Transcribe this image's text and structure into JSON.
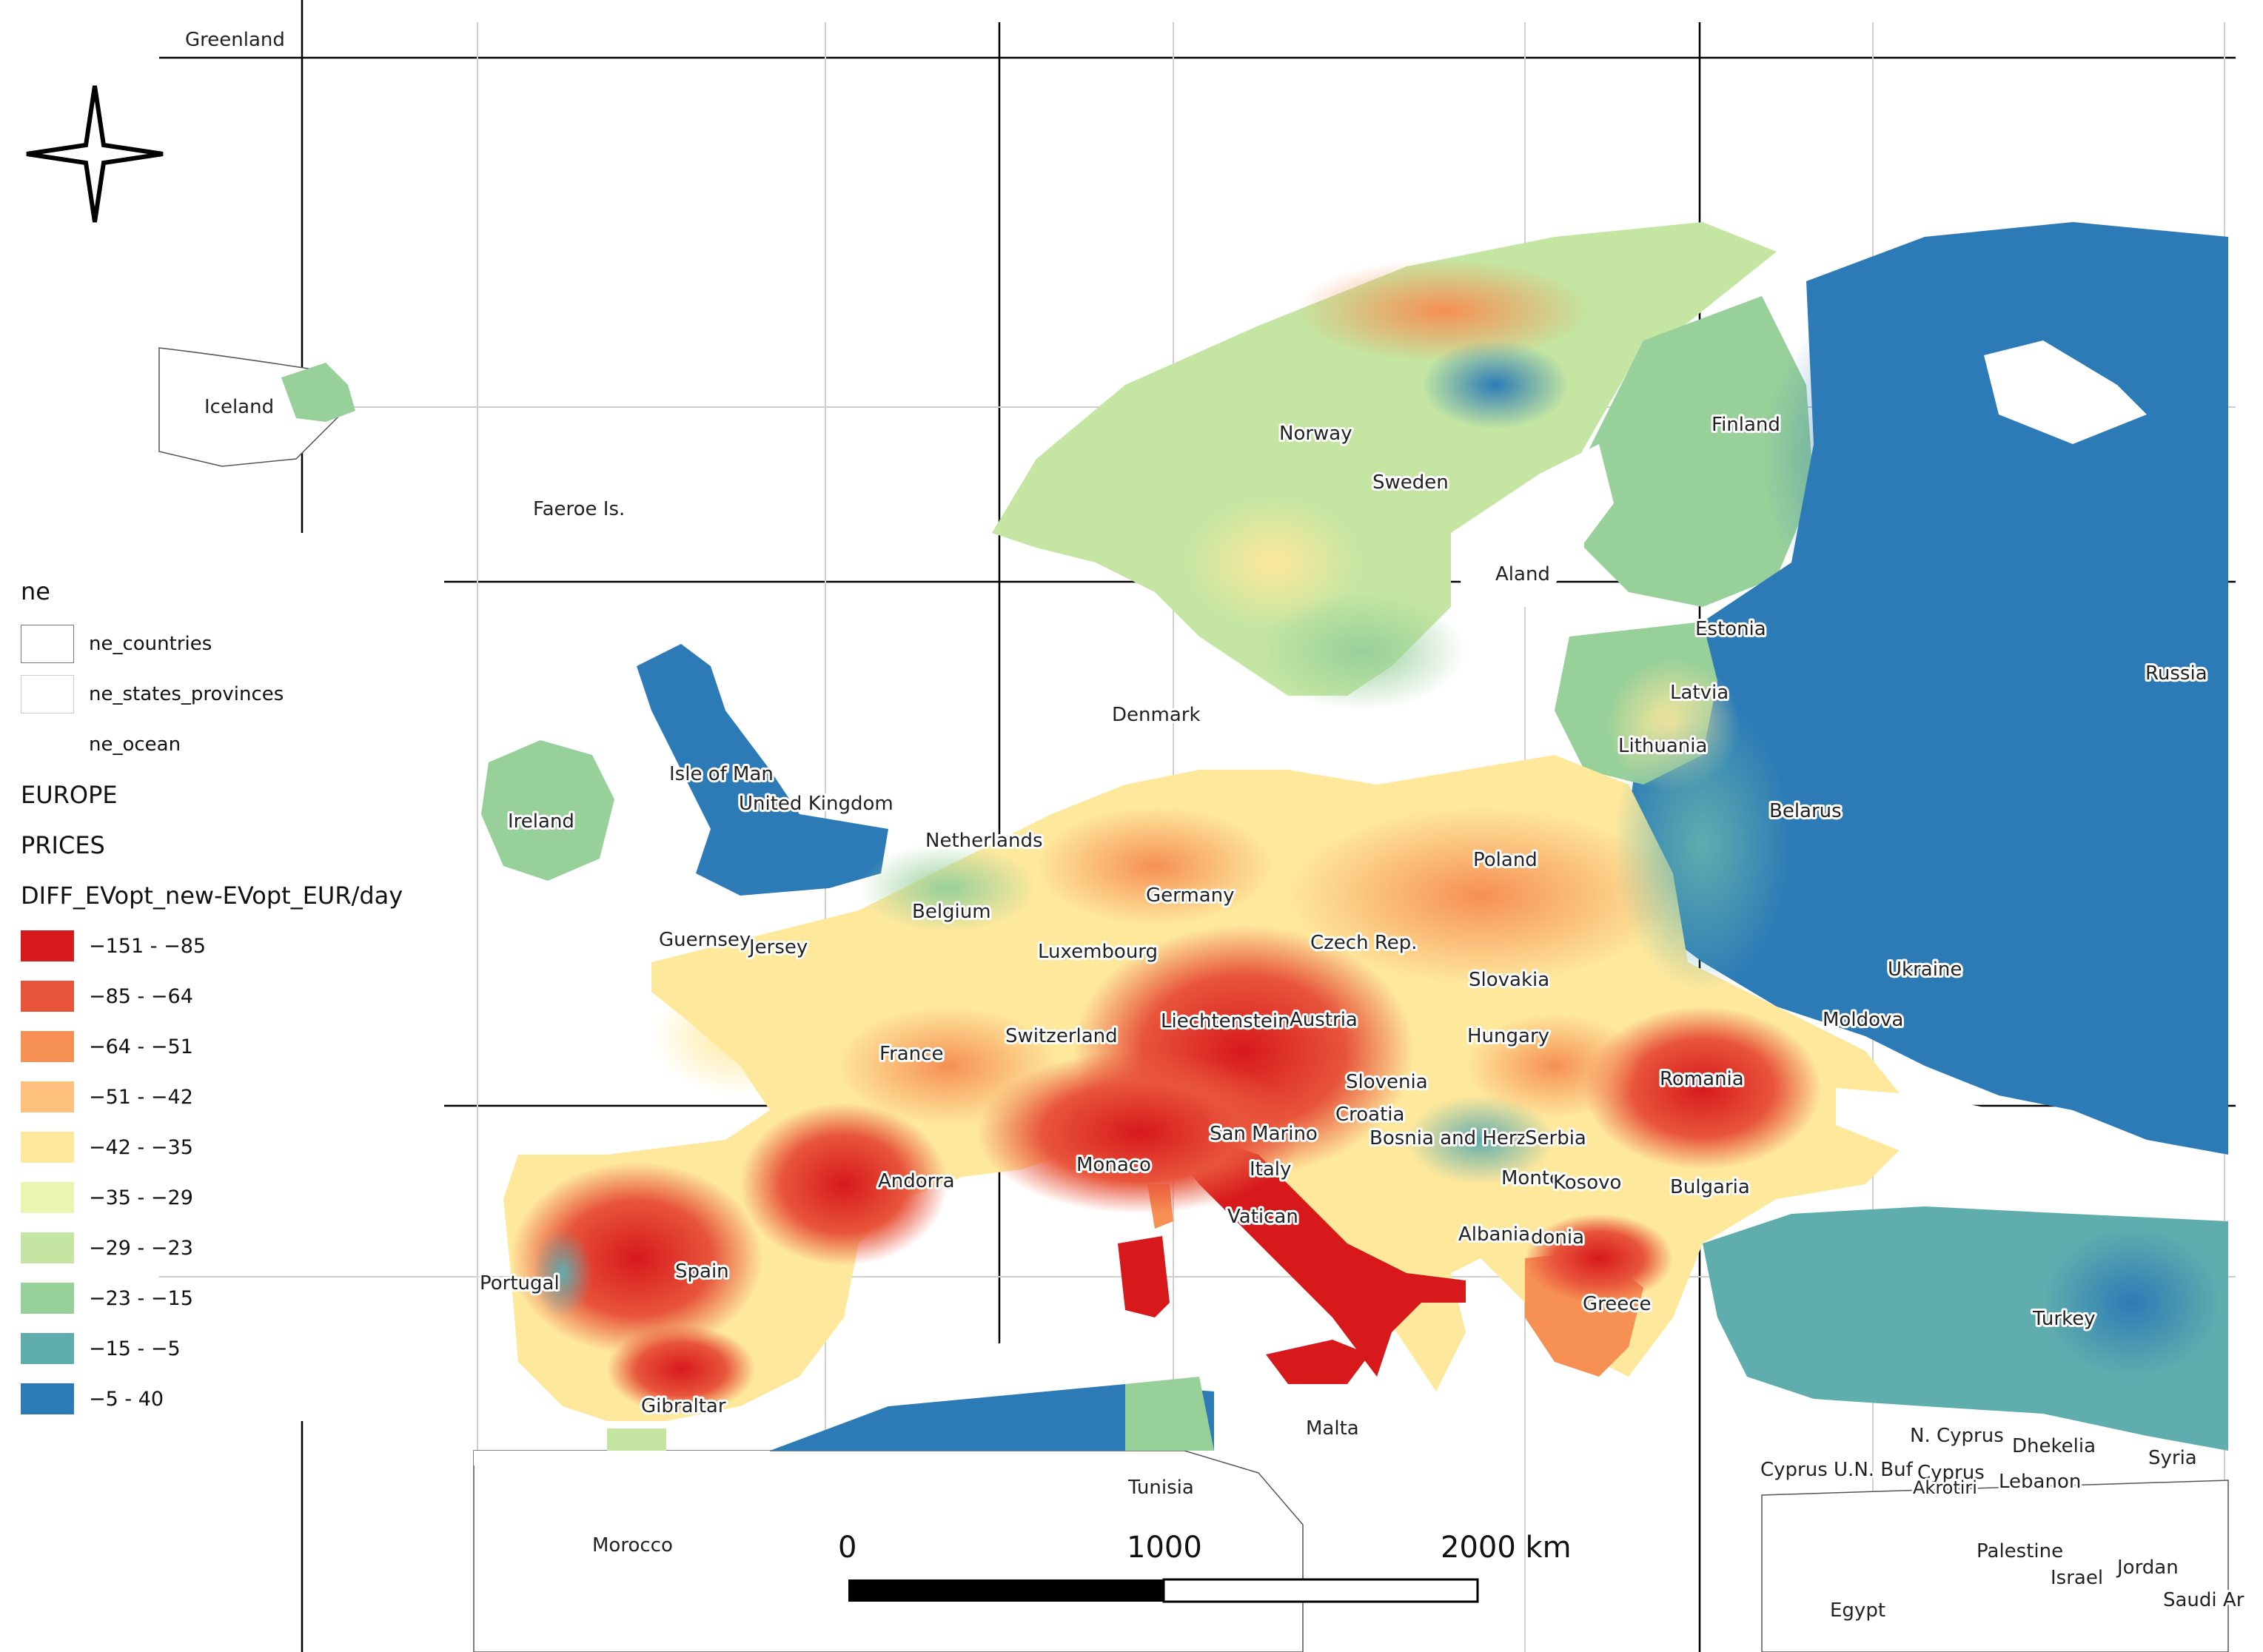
{
  "map": {
    "countries": [
      {
        "name": "Greenland"
      },
      {
        "name": "Iceland"
      },
      {
        "name": "Faeroe Is."
      },
      {
        "name": "Norway"
      },
      {
        "name": "Sweden"
      },
      {
        "name": "Finland"
      },
      {
        "name": "Aland"
      },
      {
        "name": "Estonia"
      },
      {
        "name": "Russia"
      },
      {
        "name": "Latvia"
      },
      {
        "name": "Lithuania"
      },
      {
        "name": "Denmark"
      },
      {
        "name": "Isle of Man"
      },
      {
        "name": "United Kingdom"
      },
      {
        "name": "Ireland"
      },
      {
        "name": "Netherlands"
      },
      {
        "name": "Belarus"
      },
      {
        "name": "Poland"
      },
      {
        "name": "Germany"
      },
      {
        "name": "Belgium"
      },
      {
        "name": "Guernsey"
      },
      {
        "name": "Jersey"
      },
      {
        "name": "Luxembourg"
      },
      {
        "name": "Czech Rep."
      },
      {
        "name": "Ukraine"
      },
      {
        "name": "Slovakia"
      },
      {
        "name": "Moldova"
      },
      {
        "name": "Liechtenstein"
      },
      {
        "name": "Austria"
      },
      {
        "name": "Switzerland"
      },
      {
        "name": "France"
      },
      {
        "name": "Hungary"
      },
      {
        "name": "Slovenia"
      },
      {
        "name": "Romania"
      },
      {
        "name": "Croatia"
      },
      {
        "name": "San Marino"
      },
      {
        "name": "Bosnia and Herz."
      },
      {
        "name": "Serbia"
      },
      {
        "name": "Monaco"
      },
      {
        "name": "Italy"
      },
      {
        "name": "Andorra"
      },
      {
        "name": "Monte"
      },
      {
        "name": "Kosovo"
      },
      {
        "name": "Bulgaria"
      },
      {
        "name": "Vatican"
      },
      {
        "name": "Albania"
      },
      {
        "name": "donia"
      },
      {
        "name": "Portugal"
      },
      {
        "name": "Spain"
      },
      {
        "name": "Greece"
      },
      {
        "name": "Turkey"
      },
      {
        "name": "Gibraltar"
      },
      {
        "name": "Malta"
      },
      {
        "name": "N. Cyprus"
      },
      {
        "name": "Dhekelia"
      },
      {
        "name": "Syria"
      },
      {
        "name": "Cyprus U.N. Buf"
      },
      {
        "name": "Cyprus"
      },
      {
        "name": "Akrotiri"
      },
      {
        "name": "Lebanon"
      },
      {
        "name": "Tunisia"
      },
      {
        "name": "Morocco"
      },
      {
        "name": "Palestine"
      },
      {
        "name": "Israel"
      },
      {
        "name": "Jordan"
      },
      {
        "name": "Egypt"
      },
      {
        "name": "Saudi Ar"
      }
    ],
    "scale_bar": {
      "ticks": [
        "0",
        "1000",
        "2000 km"
      ]
    }
  },
  "legend": {
    "group": "ne",
    "layers": [
      "ne_countries",
      "ne_states_provinces",
      "ne_ocean"
    ],
    "region": "EUROPE",
    "category": "PRICES",
    "field": "DIFF_EVopt_new-EVopt_EUR/day",
    "classes": [
      {
        "label": "−151 - −85",
        "color": "#d7191c"
      },
      {
        "label": "−85 - −64",
        "color": "#e8553b"
      },
      {
        "label": "−64 - −51",
        "color": "#f69053"
      },
      {
        "label": "−51 - −42",
        "color": "#fec07d"
      },
      {
        "label": "−42 - −35",
        "color": "#fee89c"
      },
      {
        "label": "−35 - −29",
        "color": "#eaf5b2"
      },
      {
        "label": "−29 - −23",
        "color": "#c4e6a2"
      },
      {
        "label": "−23 - −15",
        "color": "#98d09a"
      },
      {
        "label": "−15 - −5",
        "color": "#5fadad"
      },
      {
        "label": "−5 - 40",
        "color": "#2c7bb6"
      }
    ]
  }
}
